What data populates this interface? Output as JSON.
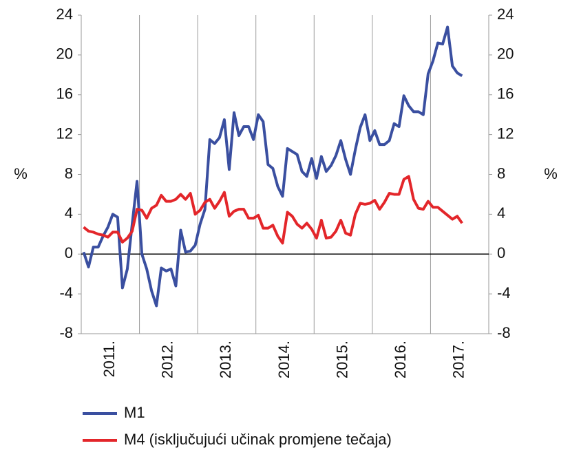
{
  "chart_data": {
    "type": "line",
    "categories": [
      null,
      null,
      null,
      null,
      null,
      null,
      "2011.",
      null,
      null,
      null,
      null,
      null,
      null,
      null,
      null,
      null,
      null,
      null,
      "2012.",
      null,
      null,
      null,
      null,
      null,
      null,
      null,
      null,
      null,
      null,
      null,
      "2013.",
      null,
      null,
      null,
      null,
      null,
      null,
      null,
      null,
      null,
      null,
      null,
      "2014.",
      null,
      null,
      null,
      null,
      null,
      null,
      null,
      null,
      null,
      null,
      null,
      "2015.",
      null,
      null,
      null,
      null,
      null,
      null,
      null,
      null,
      null,
      null,
      null,
      "2016.",
      null,
      null,
      null,
      null,
      null,
      null,
      null,
      null,
      null,
      null,
      null,
      "2017.",
      null,
      null,
      null,
      null,
      null
    ],
    "series": [
      {
        "name": "M1",
        "color": "#3a4fa0",
        "values": [
          0.2,
          -1.3,
          0.7,
          0.7,
          1.8,
          2.7,
          4.0,
          3.7,
          -3.4,
          -1.5,
          3.0,
          7.3,
          0.0,
          -1.5,
          -3.7,
          -5.2,
          -1.4,
          -1.7,
          -1.5,
          -3.2,
          2.4,
          0.2,
          0.3,
          0.9,
          3.0,
          4.5,
          11.5,
          11.1,
          11.7,
          13.5,
          8.5,
          14.2,
          11.9,
          12.8,
          12.8,
          11.5,
          14.0,
          13.3,
          9.0,
          8.6,
          6.8,
          5.8,
          10.6,
          10.3,
          10.0,
          8.3,
          7.8,
          9.6,
          7.6,
          9.8,
          8.3,
          8.9,
          9.9,
          11.4,
          9.5,
          8.0,
          10.5,
          12.7,
          14.0,
          11.4,
          12.4,
          11.0,
          11.0,
          11.4,
          13.1,
          12.8,
          15.9,
          14.9,
          14.3,
          14.3,
          14.0,
          18.1,
          19.4,
          21.2,
          21.1,
          22.8,
          18.9,
          18.2,
          17.9,
          null,
          null,
          null,
          null,
          null
        ]
      },
      {
        "name": "M4 (isključujući učinak promjene tečaja)",
        "color": "#e3262a",
        "values": [
          2.7,
          2.3,
          2.2,
          2.0,
          1.9,
          1.7,
          2.2,
          2.2,
          1.2,
          1.6,
          2.3,
          4.5,
          4.4,
          3.6,
          4.6,
          4.9,
          5.9,
          5.3,
          5.3,
          5.5,
          6.0,
          5.5,
          6.1,
          4.0,
          4.4,
          5.2,
          5.5,
          4.6,
          5.3,
          6.2,
          3.8,
          4.3,
          4.5,
          4.5,
          3.6,
          3.6,
          3.9,
          2.6,
          2.6,
          2.9,
          1.8,
          1.1,
          4.2,
          3.8,
          3.0,
          2.6,
          3.1,
          2.5,
          1.6,
          3.4,
          1.6,
          1.7,
          2.3,
          3.4,
          2.1,
          1.9,
          4.0,
          5.1,
          5.0,
          5.1,
          5.4,
          4.5,
          5.2,
          6.1,
          6.0,
          6.0,
          7.5,
          7.8,
          5.5,
          4.6,
          4.5,
          5.3,
          4.7,
          4.7,
          4.3,
          3.9,
          3.5,
          3.8,
          3.1,
          null,
          null,
          null,
          null,
          null
        ]
      }
    ],
    "ylabel": "%",
    "y2label": "%",
    "ylim": [
      -8,
      24
    ],
    "yticks": [
      -8,
      -4,
      0,
      4,
      8,
      12,
      16,
      20,
      24
    ],
    "y2lim": [
      -8,
      24
    ],
    "y2ticks": [
      -8,
      -4,
      0,
      4,
      8,
      12,
      16,
      20,
      24
    ],
    "grid": "x",
    "legend": "bottom"
  }
}
